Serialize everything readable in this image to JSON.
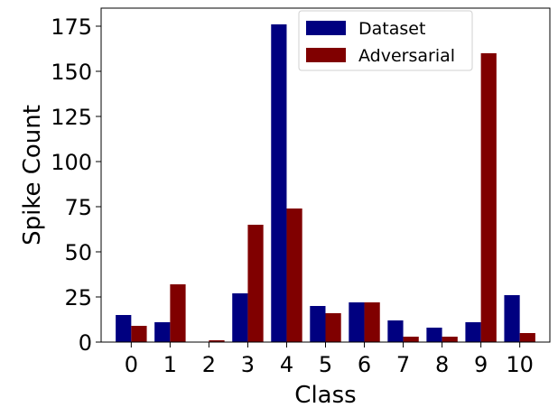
{
  "chart_data": {
    "type": "bar",
    "title": "",
    "xlabel": "Class",
    "ylabel": "Spike Count",
    "categories": [
      "0",
      "1",
      "2",
      "3",
      "4",
      "5",
      "6",
      "7",
      "8",
      "9",
      "10"
    ],
    "series": [
      {
        "name": "Dataset",
        "color": "#000080",
        "values": [
          15,
          11,
          0,
          27,
          176,
          20,
          22,
          12,
          8,
          11,
          26
        ]
      },
      {
        "name": "Adversarial",
        "color": "#800000",
        "values": [
          9,
          32,
          1,
          65,
          74,
          16,
          22,
          3,
          3,
          160,
          5
        ]
      }
    ],
    "ylim": [
      0,
      185
    ],
    "yticks": [
      0,
      25,
      50,
      75,
      100,
      125,
      150,
      175
    ],
    "grid": false,
    "legend_position": "top-center"
  }
}
